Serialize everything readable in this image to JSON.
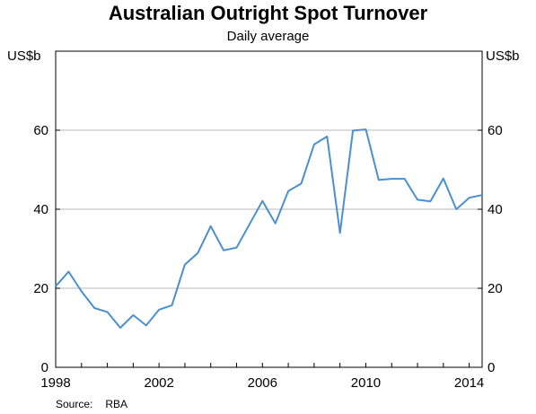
{
  "chart_data": {
    "type": "line",
    "title": "Australian Outright Spot Turnover",
    "subtitle": "Daily average",
    "ylabel_left": "US$b",
    "ylabel_right": "US$b",
    "source_label": "Source:",
    "source_value": "RBA",
    "x_ticks": [
      "1998",
      "2002",
      "2006",
      "2010",
      "2014"
    ],
    "y_ticks": [
      "0",
      "20",
      "40",
      "60"
    ],
    "xlim": [
      1998,
      2014.5
    ],
    "ylim": [
      0,
      80
    ],
    "grid": true,
    "line_color": "#4a90d0",
    "series": [
      {
        "x": [
          1998.0,
          1998.5,
          1999.0,
          1999.5,
          2000.0,
          2000.5,
          2001.0,
          2001.5,
          2002.0,
          2002.5,
          2003.0,
          2003.5,
          2004.0,
          2004.5,
          2005.0,
          2005.5,
          2006.0,
          2006.5,
          2007.0,
          2007.5,
          2008.0,
          2008.5,
          2009.0,
          2009.5,
          2010.0,
          2010.5,
          2011.0,
          2011.5,
          2012.0,
          2012.5,
          2013.0,
          2013.5,
          2014.0,
          2014.5
        ],
        "y": [
          20.5,
          24.2,
          19.2,
          15.0,
          14.0,
          10.0,
          13.2,
          10.6,
          14.6,
          15.7,
          26.0,
          28.9,
          35.7,
          29.6,
          30.3,
          36.2,
          42.1,
          36.4,
          44.6,
          46.5,
          56.4,
          58.4,
          34.0,
          59.9,
          60.2,
          47.4,
          47.7,
          47.7,
          42.4,
          42.0,
          47.8,
          40.0,
          42.9,
          43.6
        ]
      }
    ]
  }
}
